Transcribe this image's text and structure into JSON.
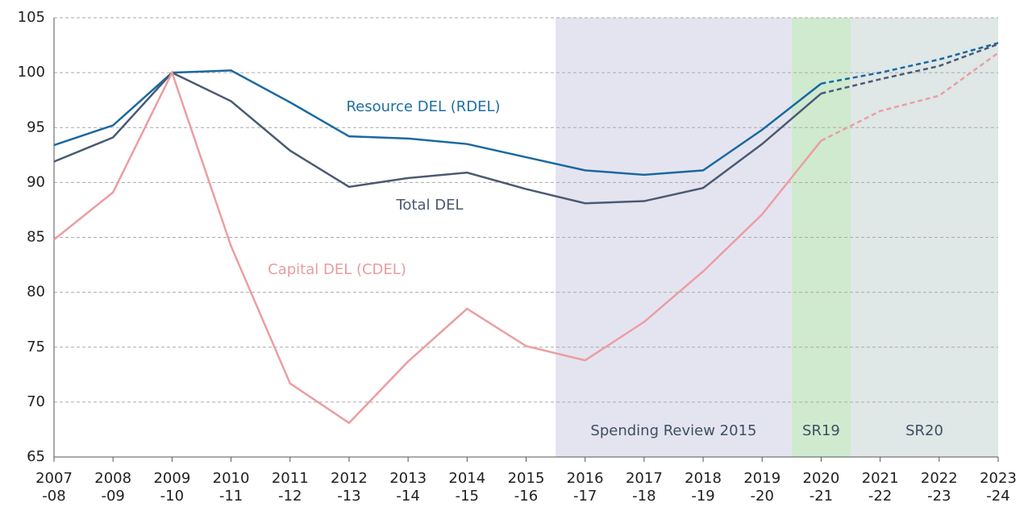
{
  "chart_data": {
    "type": "line",
    "categories": [
      "2007-08",
      "2008-09",
      "2009-10",
      "2010-11",
      "2011-12",
      "2012-13",
      "2013-14",
      "2014-15",
      "2015-16",
      "2016-17",
      "2017-18",
      "2018-19",
      "2019-20",
      "2020-21",
      "2021-22",
      "2022-23",
      "2023-24"
    ],
    "series": [
      {
        "name": "Resource DEL (RDEL)",
        "color": "#1a69a0",
        "values": [
          93.4,
          95.2,
          100,
          100.2,
          97.3,
          94.2,
          94.0,
          93.5,
          92.3,
          91.1,
          90.7,
          91.1,
          94.8,
          99.0,
          100.0,
          101.2,
          102.7
        ]
      },
      {
        "name": "Total DEL",
        "color": "#4b5a73",
        "values": [
          91.9,
          94.1,
          100,
          97.4,
          92.9,
          89.6,
          90.4,
          90.9,
          89.4,
          88.1,
          88.3,
          89.5,
          93.5,
          98.1,
          99.4,
          100.6,
          102.6
        ]
      },
      {
        "name": "Capital DEL (CDEL)",
        "color": "#eb9ea2",
        "values": [
          84.8,
          89.1,
          100,
          84.2,
          71.7,
          68.1,
          73.7,
          78.5,
          75.1,
          73.8,
          77.3,
          81.9,
          87.1,
          93.8,
          96.5,
          97.9,
          101.8
        ]
      }
    ],
    "dashed_from": "2020-21",
    "regions": [
      {
        "label": "Spending Review 2015",
        "from": "2016-17",
        "to": "2019-20",
        "color": "#e4e4f0"
      },
      {
        "label": "SR19",
        "from": "2020-21",
        "to": "2020-21",
        "color": "#cfeacf"
      },
      {
        "label": "SR20",
        "from": "2021-22",
        "to": "2023-24",
        "color": "#dfe7e7"
      }
    ],
    "ylim": [
      65,
      105
    ],
    "yticks": [
      65,
      70,
      75,
      80,
      85,
      90,
      95,
      100,
      105
    ],
    "grid": true
  }
}
